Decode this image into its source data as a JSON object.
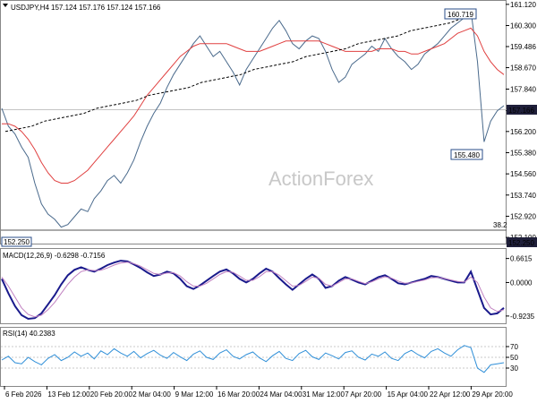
{
  "chart_data": [
    {
      "type": "line",
      "title": "USDJPY,H4",
      "header_values": "157.124 157.176 157.124 157.166",
      "watermark": "ActionForex",
      "yticks": [
        161.12,
        160.3,
        159.486,
        158.67,
        157.84,
        157.02,
        156.2,
        155.38,
        154.56,
        153.74,
        152.92,
        152.1
      ],
      "ylim": [
        152.0,
        161.15
      ],
      "xticks": [
        "6 Feb 2026",
        "13 Feb 12:00",
        "20 Feb 20:00",
        "2 Mar 04:00",
        "9 Mar 12:00",
        "16 Mar 20:00",
        "24 Mar 04:00",
        "31 Mar 12:00",
        "7 Apr 20:00",
        "15 Apr 04:00",
        "22 Apr 12:00",
        "29 Apr 20:00"
      ],
      "last_price": "157.166",
      "hline_level": "152.250",
      "fib_label": "38.2",
      "annotations": [
        "160.719",
        "155.480",
        "152.250"
      ],
      "series": [
        {
          "name": "",
          "color": "#4a6a8c",
          "values": [
            157.1,
            156.4,
            156.1,
            155.6,
            155.2,
            154.2,
            153.4,
            153.0,
            152.8,
            152.5,
            152.6,
            152.9,
            153.2,
            153.1,
            153.6,
            153.9,
            154.3,
            154.5,
            154.2,
            154.6,
            155.1,
            155.8,
            156.4,
            156.9,
            157.3,
            157.9,
            158.4,
            158.8,
            159.2,
            159.6,
            159.9,
            159.5,
            159.1,
            159.3,
            158.9,
            158.5,
            158.0,
            158.6,
            159.0,
            159.4,
            159.8,
            160.2,
            160.5,
            160.1,
            159.6,
            159.4,
            159.7,
            159.9,
            159.8,
            159.3,
            158.6,
            158.1,
            158.3,
            158.8,
            159.0,
            159.2,
            159.5,
            159.3,
            159.8,
            159.4,
            159.1,
            158.9,
            158.6,
            158.8,
            159.2,
            159.4,
            159.6,
            159.9,
            160.2,
            160.4,
            160.6,
            160.9,
            158.9,
            155.8,
            156.6,
            157.0,
            157.2
          ]
        },
        {
          "name": "",
          "color": "#e04040",
          "values": [
            156.5,
            156.5,
            156.4,
            156.2,
            155.9,
            155.5,
            155.0,
            154.6,
            154.3,
            154.2,
            154.2,
            154.3,
            154.5,
            154.7,
            155.0,
            155.3,
            155.6,
            155.9,
            156.2,
            156.5,
            156.8,
            157.2,
            157.6,
            157.9,
            158.2,
            158.5,
            158.8,
            159.1,
            159.3,
            159.5,
            159.6,
            159.6,
            159.6,
            159.6,
            159.6,
            159.5,
            159.4,
            159.3,
            159.3,
            159.3,
            159.4,
            159.5,
            159.6,
            159.7,
            159.7,
            159.7,
            159.7,
            159.7,
            159.7,
            159.6,
            159.5,
            159.4,
            159.3,
            159.3,
            159.3,
            159.3,
            159.3,
            159.4,
            159.4,
            159.4,
            159.3,
            159.3,
            159.2,
            159.2,
            159.3,
            159.4,
            159.5,
            159.6,
            159.8,
            160.0,
            160.1,
            160.2,
            159.9,
            159.3,
            158.9,
            158.6,
            158.4
          ]
        },
        {
          "name": "",
          "color": "#000000",
          "values": [
            156.2,
            156.3,
            156.4,
            156.6,
            156.7,
            156.8,
            156.9,
            157.1,
            157.2,
            157.3,
            157.4,
            157.6,
            157.7,
            157.8,
            157.9,
            158.1,
            158.2,
            158.3,
            158.4,
            158.6,
            158.7,
            158.8,
            158.9,
            159.1,
            159.2,
            159.3,
            159.4,
            159.6,
            159.7,
            159.8,
            159.9,
            160.1,
            160.2,
            160.3,
            160.4,
            160.6,
            160.7
          ]
        }
      ]
    },
    {
      "type": "line",
      "title": "MACD(12,26,9) -0.6298 -0.7156",
      "yticks": [
        0.6615,
        0.0,
        -0.9235
      ],
      "ylim": [
        -1.05,
        0.85
      ],
      "series": [
        {
          "name": "",
          "color": "#1a1a8c",
          "values": [
            0.1,
            -0.3,
            -0.65,
            -0.9,
            -1.0,
            -0.98,
            -0.85,
            -0.6,
            -0.35,
            -0.05,
            0.2,
            0.35,
            0.42,
            0.35,
            0.3,
            0.38,
            0.48,
            0.55,
            0.6,
            0.58,
            0.5,
            0.4,
            0.28,
            0.18,
            0.22,
            0.3,
            0.25,
            0.1,
            -0.1,
            -0.18,
            -0.08,
            0.05,
            0.18,
            0.3,
            0.36,
            0.25,
            0.1,
            0.0,
            0.1,
            0.25,
            0.38,
            0.3,
            0.12,
            -0.05,
            -0.2,
            -0.05,
            0.1,
            0.22,
            0.1,
            -0.15,
            -0.1,
            0.05,
            0.15,
            0.08,
            0.0,
            -0.05,
            0.05,
            0.15,
            0.2,
            0.1,
            -0.02,
            -0.05,
            0.0,
            0.05,
            0.1,
            0.18,
            0.15,
            0.1,
            0.05,
            0.0,
            0.0,
            0.3,
            -0.2,
            -0.7,
            -0.88,
            -0.85,
            -0.7
          ]
        },
        {
          "name": "",
          "color": "#c080c0",
          "values": [
            0.15,
            -0.1,
            -0.4,
            -0.7,
            -0.88,
            -0.95,
            -0.9,
            -0.75,
            -0.55,
            -0.3,
            -0.05,
            0.15,
            0.3,
            0.35,
            0.33,
            0.34,
            0.4,
            0.48,
            0.54,
            0.56,
            0.52,
            0.45,
            0.35,
            0.25,
            0.22,
            0.26,
            0.27,
            0.18,
            0.02,
            -0.1,
            -0.1,
            -0.02,
            0.1,
            0.22,
            0.3,
            0.28,
            0.18,
            0.06,
            0.06,
            0.16,
            0.3,
            0.3,
            0.2,
            0.05,
            -0.1,
            -0.08,
            0.03,
            0.15,
            0.12,
            -0.05,
            -0.1,
            0.0,
            0.1,
            0.1,
            0.03,
            -0.03,
            0.02,
            0.1,
            0.16,
            0.12,
            0.04,
            -0.02,
            -0.01,
            0.03,
            0.07,
            0.13,
            0.14,
            0.11,
            0.07,
            0.03,
            0.01,
            0.15,
            0.0,
            -0.4,
            -0.7,
            -0.8,
            -0.75
          ]
        }
      ]
    },
    {
      "type": "line",
      "title": "RSI(14) 40.2383",
      "yticks": [
        70,
        50,
        30
      ],
      "ylim": [
        0,
        100
      ],
      "series": [
        {
          "name": "",
          "color": "#2f8fd8",
          "values": [
            45,
            52,
            40,
            38,
            50,
            42,
            36,
            48,
            55,
            44,
            50,
            60,
            52,
            58,
            47,
            62,
            55,
            66,
            58,
            52,
            61,
            49,
            57,
            63,
            54,
            48,
            59,
            51,
            44,
            56,
            62,
            50,
            46,
            58,
            64,
            52,
            47,
            55,
            60,
            49,
            42,
            53,
            61,
            48,
            44,
            57,
            63,
            51,
            46,
            58,
            53,
            47,
            59,
            62,
            50,
            45,
            56,
            52,
            60,
            48,
            44,
            57,
            63,
            55,
            49,
            61,
            66,
            58,
            52,
            64,
            72,
            68,
            30,
            22,
            36,
            38,
            40
          ]
        }
      ]
    }
  ]
}
